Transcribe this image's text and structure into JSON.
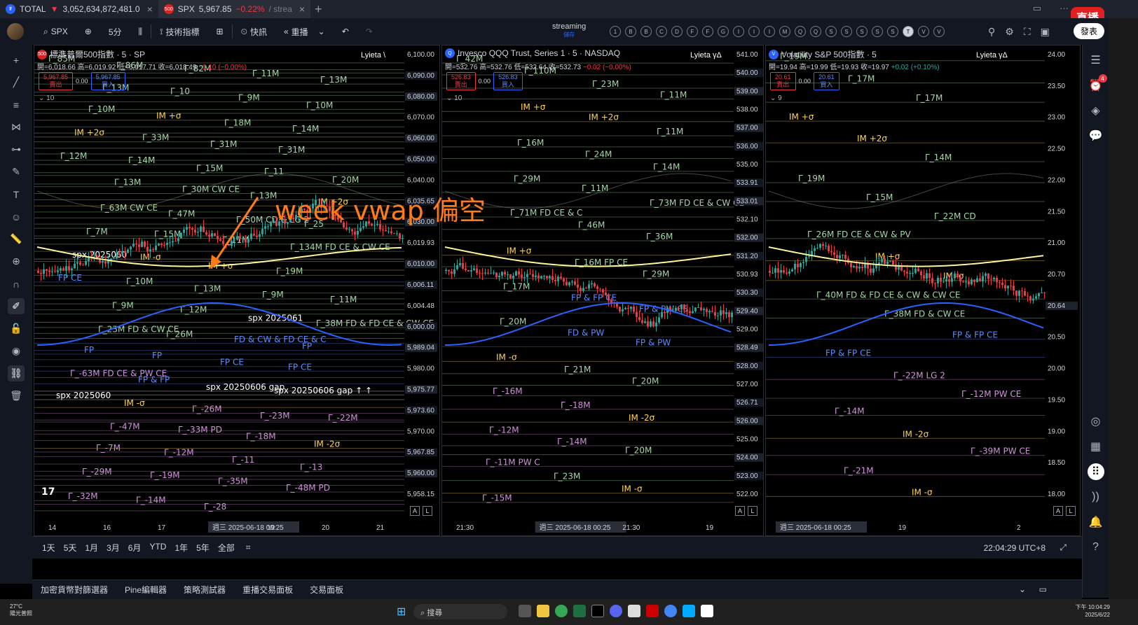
{
  "tabs": [
    {
      "name": "TOTAL",
      "value": "3,052,634,872,481.0",
      "change": "▼",
      "icon_color": "#2962ff"
    },
    {
      "name": "SPX",
      "value": "5,967.85",
      "change": "−0.22%",
      "suffix": "/ strea",
      "icon_color": "#e02020"
    }
  ],
  "live_badge": "直播",
  "toolbar": {
    "symbol": "SPX",
    "interval": "5分",
    "indicators": "技術指標",
    "alert": "快訊",
    "replay": "重播",
    "streaming": "streaming",
    "streaming_sub": "儲存",
    "publish": "發表",
    "symbols_row": [
      "1",
      "B",
      "B",
      "C",
      "D",
      "F",
      "F",
      "G",
      "I",
      "I",
      "I",
      "M",
      "Q",
      "Q",
      "S",
      "S",
      "S",
      "S",
      "S",
      "T",
      "V",
      "V"
    ]
  },
  "panes": [
    {
      "title": "標準普爾500指數 · 5 · SP",
      "icon_label": "500",
      "icon_color": "#e02020",
      "ohlc": {
        "open": "開=6,018.66",
        "high": "高=6,019.92",
        "low": "低=6,017.71",
        "close": "收=6,018.49",
        "chg": "−0.10 (−0.00%)"
      },
      "sell": "5,967.85",
      "sell_label": "賣出",
      "spread": "0.00",
      "buy": "5,967.85",
      "buy_label": "買入",
      "ind_count": "10",
      "lyieta": "Lyieta \\",
      "price_labels": [
        "6,100.00",
        "6,090.00",
        "6,080.00",
        "6,070.00",
        "6,060.00",
        "6,050.00",
        "6,040.00",
        "6,035.65",
        "6,030.00",
        "6,019.93",
        "6,010.00",
        "6,006.11",
        "6,004.48",
        "6,000.00",
        "5,989.04",
        "5,980.00",
        "5,975.77",
        "5,973.60",
        "5,970.00",
        "5,967.85",
        "5,960.00",
        "5,958.15"
      ],
      "x_labels": [
        "14",
        "16",
        "17",
        "週三 2025-06-18   00:25",
        "19",
        "20",
        "21"
      ],
      "gamma": [
        "Γ_85M",
        "Γ_86M",
        "Γ_82M",
        "Γ_11M",
        "Γ_13M",
        "Γ_13M",
        "Γ_10",
        "Γ_9M",
        "Γ_10M",
        "Γ_10M",
        "IM +σ",
        "Γ_18M",
        "Γ_14M",
        "IM +2σ",
        "Γ_33M",
        "Γ_31M",
        "Γ_31M",
        "Γ_12M",
        "Γ_14M",
        "Γ_15M",
        "Γ_11",
        "Γ_20M",
        "Γ_13M",
        "Γ_30M  CW CE",
        "Γ_13M",
        "IM +2σ",
        "Γ_63M  CW CE",
        "Γ_47M",
        "Γ_50M  CD & LG 2",
        "Γ_25",
        "Γ_7M",
        "Γ_15M",
        "Γ_11M",
        "Γ_134M  FD CE & CW CE",
        "spx 2025060",
        "IM -σ",
        "IM +σ",
        "Γ_19M",
        "FP CE",
        "Γ_10M",
        "Γ_13M",
        "Γ_9M",
        "Γ_11M",
        "Γ_9M",
        "Γ_12M",
        "spx 2025061",
        "Γ_38M  FD & FD CE & CW CE",
        "Γ_23M  FD & CW CE",
        "Γ_26M",
        "FD & CW & FD CE & C",
        "FP",
        "FP",
        "FP",
        "FP CE",
        "FP CE",
        "Γ_-63M  FD CE & PW CE",
        "FP & FP",
        "spx 20250606 gap",
        "spx 20250606 gap  ↑ ↑",
        "spx 2025060",
        "IM -σ",
        "Γ_-26M",
        "Γ_-23M",
        "Γ_-22M",
        "Γ_-47M",
        "Γ_-33M  PD",
        "Γ_-18M",
        "IM -2σ",
        "Γ_-7M",
        "Γ_-12M",
        "Γ_-11",
        "Γ_-13",
        "Γ_-29M",
        "Γ_-19M",
        "Γ_-35M",
        "Γ_-48M  PD",
        "Γ_-32M",
        "Γ_-14M",
        "Γ_-28"
      ]
    },
    {
      "title": "Invesco QQQ Trust, Series 1 · 5 · NASDAQ",
      "icon_label": "Q",
      "icon_color": "#2962ff",
      "ohlc": {
        "open": "開=532.76",
        "high": "高=532.76",
        "low": "低=532.64",
        "close": "收=532.73",
        "chg": "−0.02 (−0.00%)"
      },
      "sell": "526.83",
      "sell_label": "賣出",
      "spread": "0.00",
      "buy": "526.83",
      "buy_label": "買入",
      "ind_count": "10",
      "lyieta": "Lyieta γΔ",
      "price_labels": [
        "541.00",
        "540.00",
        "539.00",
        "538.00",
        "537.00",
        "536.00",
        "535.00",
        "533.91",
        "533.01",
        "532.10",
        "532.00",
        "531.20",
        "530.93",
        "530.30",
        "529.40",
        "529.00",
        "528.49",
        "528.00",
        "527.00",
        "526.71",
        "526.00",
        "525.00",
        "524.00",
        "523.00",
        "522.00"
      ],
      "x_labels": [
        "21:30",
        "週三 2025-06-18   00:25",
        "21:30",
        "19"
      ],
      "gamma": [
        "Γ_42M",
        "Γ_110M",
        "Γ_23M",
        "Γ_11M",
        "IM +σ",
        "IM +2σ",
        "Γ_11M",
        "Γ_16M",
        "Γ_24M",
        "Γ_14M",
        "Γ_29M",
        "Γ_11M",
        "Γ_73M  FD CE & CW CE",
        "Γ_71M  FD CE & C",
        "Γ_46M",
        "Γ_36M",
        "IM +σ",
        "Γ_16M  FP CE",
        "Γ_29M",
        "Γ_17M",
        "FP & FP CE",
        "FP & PW CE",
        "Γ_20M",
        "FD & PW",
        "FP & PW",
        "IM -σ",
        "Γ_21M",
        "Γ_20M",
        "Γ_-16M",
        "Γ_-18M",
        "IM -2σ",
        "Γ_-12M",
        "Γ_-14M",
        "Γ_20M",
        "Γ_-11M  PW C",
        "Γ_23M",
        "IM -σ",
        "Γ_-15M"
      ]
    },
    {
      "title": "Volatility S&P 500指數 · 5",
      "icon_label": "V",
      "icon_color": "#2962ff",
      "ohlc": {
        "open": "開=19.94",
        "high": "高=19.99",
        "low": "低=19.93",
        "close": "收=19.97",
        "chg": "+0.02 (+0.10%)"
      },
      "sell": "20.61",
      "sell_label": "賣出",
      "spread": "0.00",
      "buy": "20.61",
      "buy_label": "買入",
      "ind_count": "9",
      "lyieta": "Lyieta γΔ",
      "price_labels": [
        "24.00",
        "23.50",
        "23.00",
        "22.50",
        "22.00",
        "21.50",
        "21.00",
        "20.70",
        "20.64",
        "20.50",
        "20.00",
        "19.50",
        "19.00",
        "18.50",
        "18.00"
      ],
      "x_labels": [
        "週三 2025-06-18   00:25",
        "19",
        "2"
      ],
      "gamma": [
        "Γ_19M",
        "Γ_17M",
        "Γ_17M",
        "IM +σ",
        "IM +2σ",
        "Γ_14M",
        "Γ_19M",
        "Γ_15M",
        "Γ_22M  CD",
        "Γ_26M  FD CE & CW & PV",
        "IM +σ",
        "IM -σ",
        "Γ_40M  FD & FD CE & CW & CW CE",
        "Γ_38M  FD & CW CE",
        "FP & FP CE",
        "FP & FP CE",
        "Γ_-22M  LG 2",
        "Γ_-12M  PW CE",
        "Γ_-14M",
        "IM -2σ",
        "Γ_-39M  PW CE",
        "Γ_-21M",
        "IM -σ"
      ]
    }
  ],
  "annotation": "week vwap 偏空",
  "timeframes": [
    "1天",
    "5天",
    "1月",
    "3月",
    "6月",
    "YTD",
    "1年",
    "5年",
    "全部"
  ],
  "clock": "22:04:29 UTC+8",
  "panels": [
    "加密貨幣對篩選器",
    "Pine編輯器",
    "策略測試器",
    "重播交易面板",
    "交易面板"
  ],
  "taskbar": {
    "weather_temp": "27°C",
    "weather_desc": "陽光普照",
    "search": "搜尋",
    "time": "下午 10:04:29",
    "date": "2025/6/22"
  },
  "colors": {
    "up": "#26a69a",
    "down": "#f23645",
    "vwap": "#fff59d",
    "band": "#2962ff",
    "gamma_pos": "#a5d6a7",
    "gamma_neg": "#ce93d8",
    "im": "#ffd54f"
  }
}
